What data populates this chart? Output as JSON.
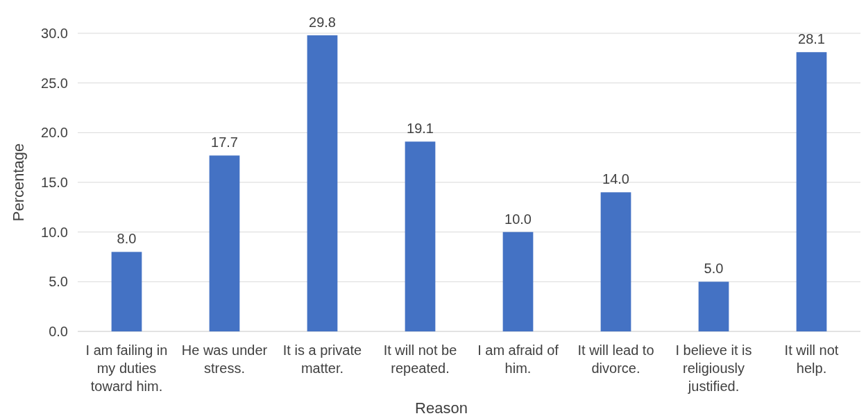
{
  "chart_data": {
    "type": "bar",
    "xlabel": "Reason",
    "ylabel": "Percentage",
    "categories": [
      "I am failing in my duties toward him.",
      "He was under stress.",
      "It is a private matter.",
      "It will not be repeated.",
      "I am afraid of him.",
      "It will lead to divorce.",
      "I believe it is religiously justified.",
      "It will not help."
    ],
    "values": [
      8.0,
      17.7,
      29.8,
      19.1,
      10.0,
      14.0,
      5.0,
      28.1
    ],
    "color": "#4472c4",
    "ylim": [
      0,
      30
    ],
    "yticks": [
      {
        "value": 0,
        "label": "0.0"
      },
      {
        "value": 5,
        "label": "5.0"
      },
      {
        "value": 10,
        "label": "10.0"
      },
      {
        "value": 15,
        "label": "15.0"
      },
      {
        "value": 20,
        "label": "20.0"
      },
      {
        "value": 25,
        "label": "25.0"
      },
      {
        "value": 30,
        "label": "30.0"
      }
    ],
    "value_labels": [
      "8.0",
      "17.7",
      "29.8",
      "19.1",
      "10.0",
      "14.0",
      "5.0",
      "28.1"
    ],
    "grid": "y"
  }
}
